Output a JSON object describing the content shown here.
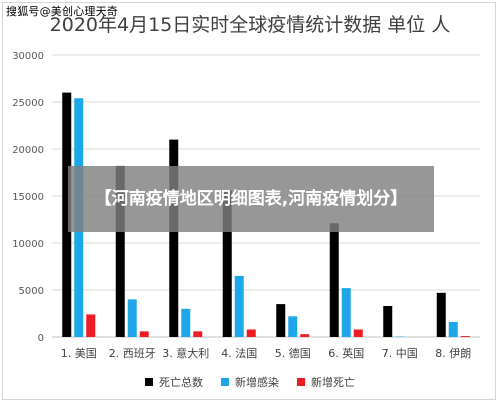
{
  "watermark": "搜狐号@美创心理天奇",
  "overlay_text": "【河南疫情地区明细图表,河南疫情划分】",
  "chart_data": {
    "type": "bar",
    "title": "2020年4月15日实时全球疫情统计数据 单位 人",
    "categories": [
      "1. 美国",
      "2. 西班牙",
      "3. 意大利",
      "4. 法国",
      "5. 德国",
      "6. 英国",
      "7. 中国",
      "8. 伊朗"
    ],
    "series": [
      {
        "name": "死亡总数",
        "color": "#000000",
        "values": [
          26000,
          18200,
          21000,
          15600,
          3500,
          12100,
          3300,
          4700
        ]
      },
      {
        "name": "新增感染",
        "color": "#1ea7e8",
        "values": [
          25400,
          4000,
          3000,
          6500,
          2200,
          5200,
          50,
          1600
        ]
      },
      {
        "name": "新增死亡",
        "color": "#ee1c25",
        "values": [
          2400,
          600,
          600,
          800,
          300,
          800,
          0,
          100
        ]
      }
    ],
    "ylim": [
      0,
      30000
    ],
    "yticks": [
      0,
      5000,
      10000,
      15000,
      20000,
      25000,
      30000
    ],
    "grid": true,
    "legend_position": "bottom"
  }
}
